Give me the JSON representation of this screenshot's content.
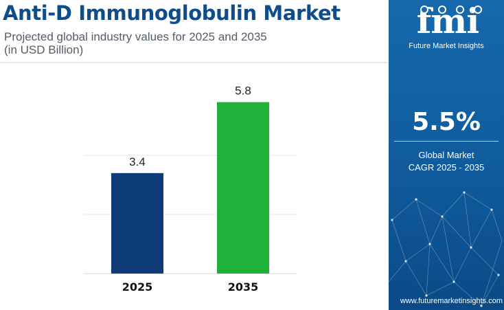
{
  "header": {
    "title": "Anti-D Immunoglobulin Market",
    "subtitle_line1": "Projected global industry values for 2025 and 2035",
    "subtitle_line2": "(in USD Billion)"
  },
  "colors": {
    "title": "#0f4c8a",
    "bar_2025": "#0d3b78",
    "bar_2035": "#1fb23b",
    "panel": "#1669ad"
  },
  "chart_data": {
    "type": "bar",
    "categories": [
      "2025",
      "2035"
    ],
    "values": [
      3.4,
      5.8
    ],
    "data_labels": [
      "3.4",
      "5.8"
    ],
    "colors": [
      "#0d3b78",
      "#1fb23b"
    ],
    "ylim": [
      0,
      6
    ],
    "grid": true,
    "xlabel": "",
    "ylabel": ""
  },
  "sidebar": {
    "logo_text": "fmi",
    "brand": "Future Market Insights",
    "cagr_value": "5.5%",
    "cagr_label_line1": "Global Market",
    "cagr_label_line2": "CAGR 2025 - 2035",
    "url": "www.futuremarketinsights.com"
  }
}
